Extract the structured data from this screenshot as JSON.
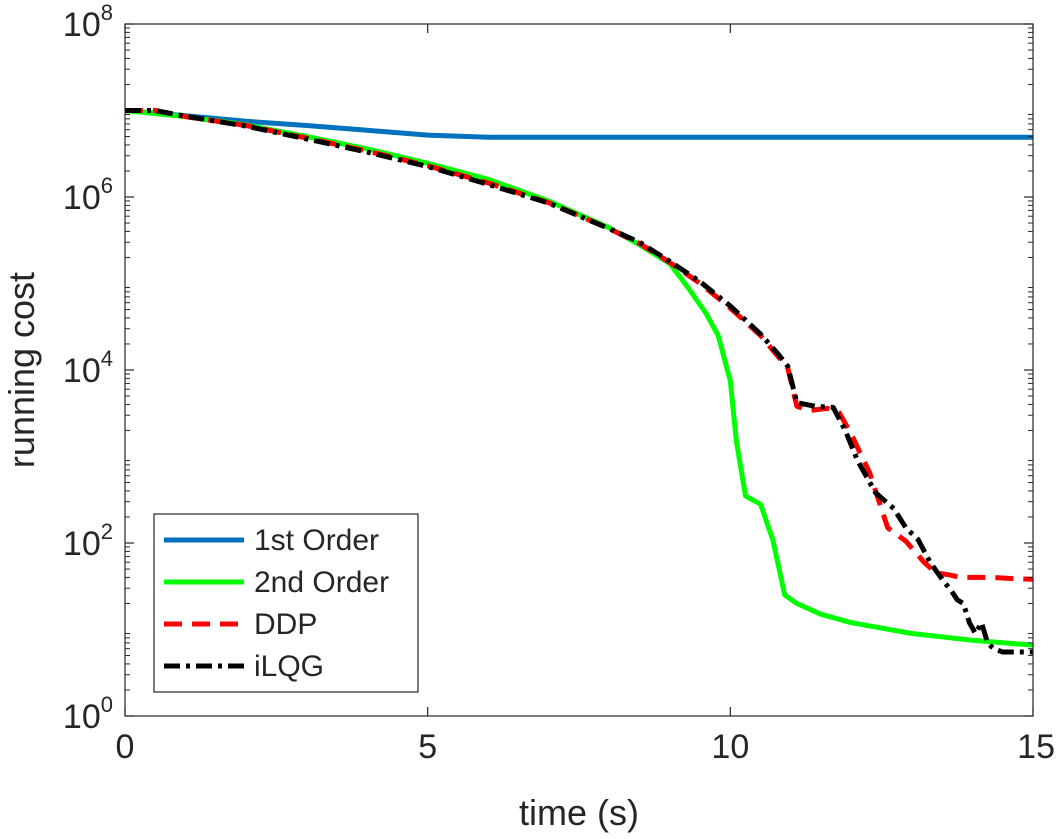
{
  "chart_data": {
    "type": "line",
    "title": "",
    "xlabel": "time (s)",
    "ylabel": "running cost",
    "xlim": [
      0,
      15
    ],
    "ylim": [
      1,
      100000000
    ],
    "yscale": "log",
    "grid": false,
    "legend_position": "bottom-left",
    "xticks": [
      {
        "value": 0,
        "label": "0"
      },
      {
        "value": 5,
        "label": "5"
      },
      {
        "value": 10,
        "label": "10"
      },
      {
        "value": 15,
        "label": "15"
      }
    ],
    "yticks": [
      {
        "value": 1,
        "base": "10",
        "exp": "0"
      },
      {
        "value": 100,
        "base": "10",
        "exp": "2"
      },
      {
        "value": 10000,
        "base": "10",
        "exp": "4"
      },
      {
        "value": 1000000,
        "base": "10",
        "exp": "6"
      },
      {
        "value": 100000000,
        "base": "10",
        "exp": "8"
      }
    ],
    "series": [
      {
        "name": "1st Order",
        "color": "#0072bd",
        "dash": "solid",
        "x": [
          0,
          1,
          2,
          3,
          4,
          5,
          6,
          8,
          10,
          12,
          15
        ],
        "y": [
          10000000,
          8700000,
          7500000,
          6700000,
          5900000,
          5200000,
          4900000,
          4900000,
          4900000,
          4900000,
          4900000
        ]
      },
      {
        "name": "2nd Order",
        "color": "#00ff00",
        "dash": "solid",
        "x": [
          0,
          1,
          2,
          3,
          4,
          5,
          6,
          7,
          8,
          8.5,
          9,
          9.3,
          9.6,
          9.8,
          10,
          10.1,
          10.25,
          10.5,
          10.7,
          10.9,
          11.1,
          11.5,
          12,
          13,
          14,
          15
        ],
        "y": [
          10000000,
          8500000,
          6800000,
          5000000,
          3600000,
          2450000,
          1600000,
          900000,
          440000,
          280000,
          170000,
          90000,
          45000,
          25000,
          7500,
          1500,
          350,
          280,
          110,
          25,
          20,
          15,
          12,
          9,
          7.5,
          6.6
        ]
      },
      {
        "name": "DDP",
        "color": "#ff0000",
        "dash": "dashed",
        "x": [
          0,
          0.5,
          1,
          2,
          3,
          4,
          5,
          6,
          7,
          8,
          8.5,
          9,
          9.5,
          10,
          10.5,
          10.8,
          10.95,
          11.1,
          11.3,
          11.6,
          11.8,
          12,
          12.3,
          12.6,
          12.9,
          13.2,
          13.4,
          13.6,
          13.8,
          14,
          14.3,
          14.6,
          15
        ],
        "y": [
          10000000,
          10000000,
          8500000,
          6700000,
          4800000,
          3400000,
          2300000,
          1450000,
          860000,
          430000,
          290000,
          175000,
          100000,
          52000,
          25000,
          14000,
          10500,
          3800,
          3400,
          3600,
          3200,
          1800,
          650,
          150,
          105,
          60,
          45,
          43,
          40,
          40,
          40,
          39,
          38
        ]
      },
      {
        "name": "iLQG",
        "color": "#000000",
        "dash": "dashdot",
        "x": [
          0,
          0.5,
          1,
          2,
          3,
          4,
          5,
          6,
          7,
          8,
          8.5,
          9,
          9.5,
          10,
          10.5,
          10.8,
          10.95,
          11.1,
          11.4,
          11.7,
          11.9,
          12.1,
          12.4,
          12.7,
          12.9,
          13.1,
          13.3,
          13.5,
          13.65,
          13.75,
          13.85,
          13.95,
          14.05,
          14.15,
          14.25,
          14.35,
          14.5,
          14.7,
          15
        ],
        "y": [
          10000000,
          10000000,
          8600000,
          6600000,
          4700000,
          3300000,
          2250000,
          1400000,
          850000,
          430000,
          300000,
          180000,
          105000,
          55000,
          26000,
          15000,
          11000,
          4200,
          3800,
          3700,
          2000,
          900,
          380,
          250,
          150,
          110,
          60,
          38,
          28,
          22,
          20,
          12,
          9,
          12,
          7,
          6,
          5.5,
          5.5,
          5.5
        ]
      }
    ]
  }
}
